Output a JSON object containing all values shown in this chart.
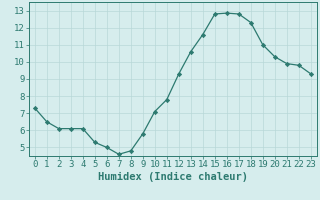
{
  "x": [
    0,
    1,
    2,
    3,
    4,
    5,
    6,
    7,
    8,
    9,
    10,
    11,
    12,
    13,
    14,
    15,
    16,
    17,
    18,
    19,
    20,
    21,
    22,
    23
  ],
  "y": [
    7.3,
    6.5,
    6.1,
    6.1,
    6.1,
    5.3,
    5.0,
    4.6,
    4.8,
    5.8,
    7.1,
    7.8,
    9.3,
    10.6,
    11.6,
    12.8,
    12.85,
    12.8,
    12.3,
    11.0,
    10.3,
    9.9,
    9.8,
    9.3
  ],
  "line_color": "#2d7a70",
  "marker": "D",
  "marker_size": 2.2,
  "bg_color": "#d6eded",
  "grid_color": "#b8d8d8",
  "xlabel": "Humidex (Indice chaleur)",
  "xlim": [
    -0.5,
    23.5
  ],
  "ylim": [
    4.5,
    13.5
  ],
  "yticks": [
    5,
    6,
    7,
    8,
    9,
    10,
    11,
    12,
    13
  ],
  "xticks": [
    0,
    1,
    2,
    3,
    4,
    5,
    6,
    7,
    8,
    9,
    10,
    11,
    12,
    13,
    14,
    15,
    16,
    17,
    18,
    19,
    20,
    21,
    22,
    23
  ],
  "axis_color": "#2d7a70",
  "tick_color": "#2d7a70",
  "label_fontsize": 7.5,
  "tick_fontsize": 6.5
}
